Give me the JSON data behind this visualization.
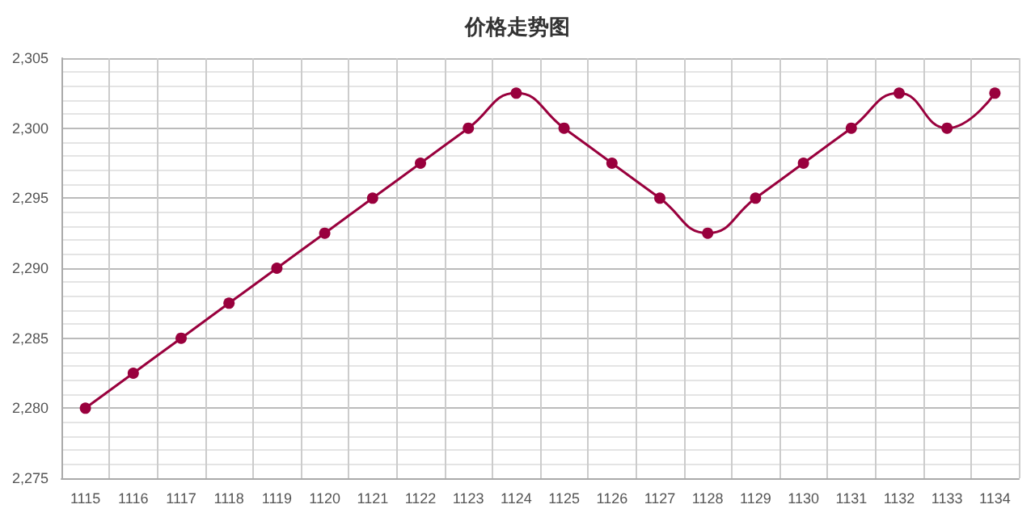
{
  "chart_data": {
    "type": "line",
    "title": "价格走势图",
    "categories": [
      "1115",
      "1116",
      "1117",
      "1118",
      "1119",
      "1120",
      "1121",
      "1122",
      "1123",
      "1124",
      "1125",
      "1126",
      "1127",
      "1128",
      "1129",
      "1130",
      "1131",
      "1132",
      "1133",
      "1134"
    ],
    "series": [
      {
        "color": "#99003d",
        "values": [
          2280,
          2282.5,
          2285,
          2287.5,
          2290,
          2292.5,
          2295,
          2297.5,
          2300,
          2302.5,
          2300,
          2297.5,
          2295,
          2292.5,
          2295,
          2297.5,
          2300,
          2302.5,
          2300,
          2302.5
        ]
      }
    ],
    "ylim": [
      2275,
      2305
    ],
    "yticks": [
      {
        "value": 2275,
        "label": "2,275"
      },
      {
        "value": 2280,
        "label": "2,280"
      },
      {
        "value": 2285,
        "label": "2,285"
      },
      {
        "value": 2290,
        "label": "2,290"
      },
      {
        "value": 2295,
        "label": "2,295"
      },
      {
        "value": 2300,
        "label": "2,300"
      },
      {
        "value": 2305,
        "label": "2,305"
      }
    ],
    "grid": true,
    "marker": "circle",
    "line_style": "solid"
  }
}
